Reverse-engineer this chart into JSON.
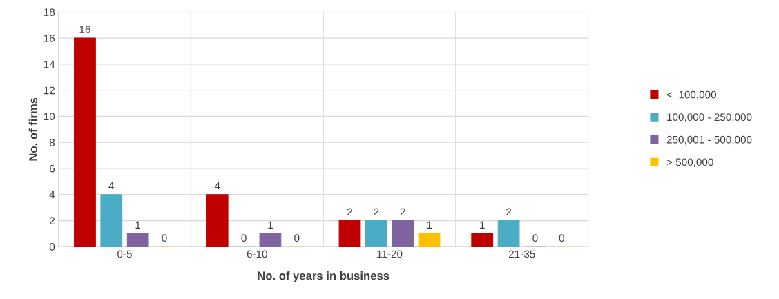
{
  "chart_data": {
    "type": "bar",
    "xlabel": "No. of years in business",
    "ylabel": "No. of firms",
    "categories": [
      "0-5",
      "6-10",
      "11-20",
      "21-35"
    ],
    "series": [
      {
        "name": "<  100,000",
        "color": "#c00000",
        "values": [
          16,
          4,
          2,
          1
        ]
      },
      {
        "name": "100,000 - 250,000",
        "color": "#4bacc6",
        "values": [
          4,
          0,
          2,
          2
        ]
      },
      {
        "name": "250,001 - 500,000",
        "color": "#8064a2",
        "values": [
          1,
          1,
          2,
          0
        ]
      },
      {
        "name": "> 500,000",
        "color": "#ffc000",
        "values": [
          0,
          0,
          1,
          0
        ]
      }
    ],
    "ylim": [
      0,
      18
    ],
    "yticks": [
      0,
      2,
      4,
      6,
      8,
      10,
      12,
      14,
      16,
      18
    ],
    "grid": true,
    "legend": "right",
    "data_labels": true
  }
}
